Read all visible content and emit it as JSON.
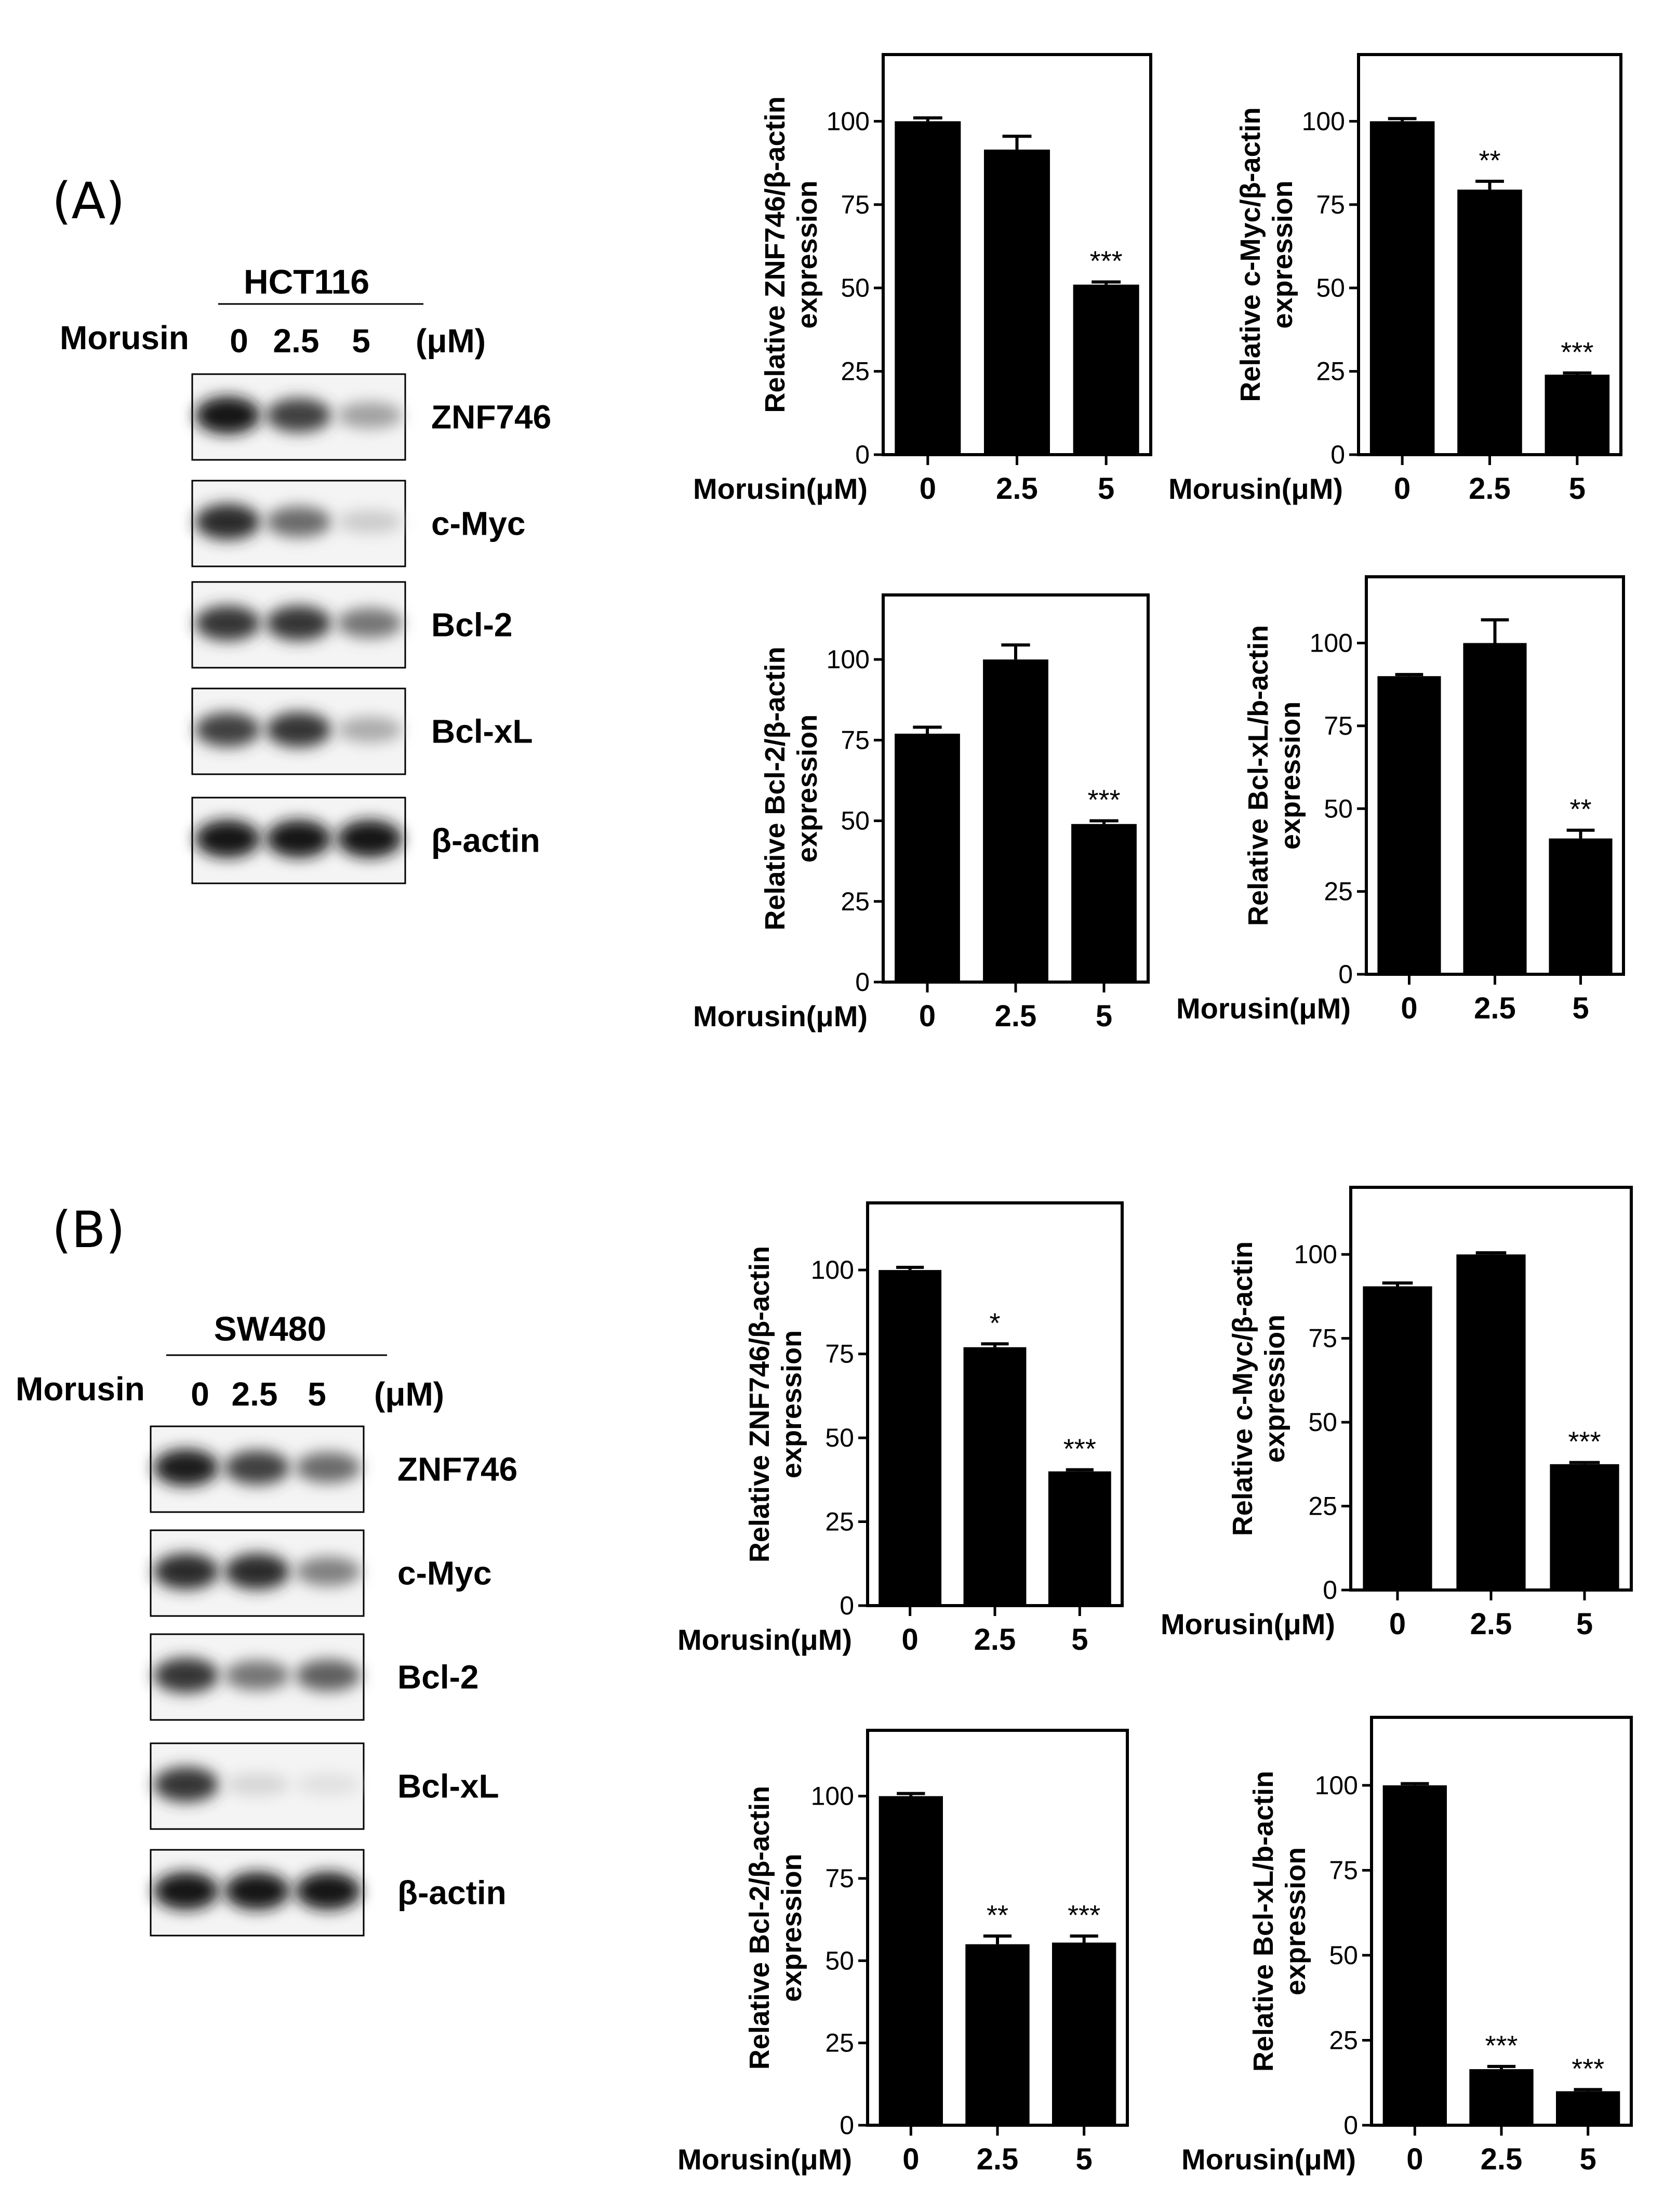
{
  "panels": [
    {
      "letter": "(A)",
      "cell_line": "HCT116",
      "treatment_label": "Morusin",
      "doses": [
        "0",
        "2.5",
        "5"
      ],
      "unit": "(μM)",
      "bands": [
        {
          "protein": "ZNF746",
          "intensity": [
            1.0,
            0.8,
            0.35
          ]
        },
        {
          "protein": "c-Myc",
          "intensity": [
            0.9,
            0.6,
            0.15
          ]
        },
        {
          "protein": "Bcl-2",
          "intensity": [
            0.85,
            0.85,
            0.55
          ]
        },
        {
          "protein": "Bcl-xL",
          "intensity": [
            0.8,
            0.85,
            0.3
          ]
        },
        {
          "protein": "β-actin",
          "intensity": [
            1.0,
            1.0,
            1.0
          ]
        }
      ]
    },
    {
      "letter": "(B)",
      "cell_line": "SW480",
      "treatment_label": "Morusin",
      "doses": [
        "0",
        "2.5",
        "5"
      ],
      "unit": "(μM)",
      "bands": [
        {
          "protein": "ZNF746",
          "intensity": [
            0.95,
            0.8,
            0.6
          ]
        },
        {
          "protein": "c-Myc",
          "intensity": [
            0.9,
            0.9,
            0.5
          ]
        },
        {
          "protein": "Bcl-2",
          "intensity": [
            0.85,
            0.55,
            0.65
          ]
        },
        {
          "protein": "Bcl-xL",
          "intensity": [
            0.85,
            0.1,
            0.05
          ]
        },
        {
          "protein": "β-actin",
          "intensity": [
            1.0,
            1.0,
            1.0
          ]
        }
      ]
    }
  ],
  "chart_data": [
    {
      "type": "bar",
      "panel": "(A)",
      "categories": [
        "0",
        "2.5",
        "5"
      ],
      "values": [
        100,
        91.5,
        51
      ],
      "errors": [
        1,
        4,
        0.8
      ],
      "significance": [
        "",
        "",
        "***"
      ],
      "ylabel": [
        "Relative ZNF746/β-actin",
        "expression"
      ],
      "xlabel": "Morusin(μM)",
      "ylim": [
        0,
        120
      ],
      "yticks": [
        0,
        25,
        50,
        75,
        100
      ]
    },
    {
      "type": "bar",
      "panel": "(A)",
      "categories": [
        "0",
        "2.5",
        "5"
      ],
      "values": [
        100,
        79.5,
        24
      ],
      "errors": [
        0.8,
        2.5,
        0.5
      ],
      "significance": [
        "",
        "**",
        "***"
      ],
      "ylabel": [
        "Relative c-Myc/β-actin",
        "expression"
      ],
      "xlabel": "Morusin(μM)",
      "ylim": [
        0,
        120
      ],
      "yticks": [
        0,
        25,
        50,
        75,
        100
      ]
    },
    {
      "type": "bar",
      "panel": "(A)",
      "categories": [
        "0",
        "2.5",
        "5"
      ],
      "values": [
        77,
        100,
        49
      ],
      "errors": [
        2,
        4.5,
        1
      ],
      "significance": [
        "",
        "",
        "***"
      ],
      "ylabel": [
        "Relative Bcl-2/β-actin",
        "expression"
      ],
      "xlabel": "Morusin(μM)",
      "ylim": [
        0,
        120
      ],
      "yticks": [
        0,
        25,
        50,
        75,
        100
      ]
    },
    {
      "type": "bar",
      "panel": "(A)",
      "categories": [
        "0",
        "2.5",
        "5"
      ],
      "values": [
        90,
        100,
        41
      ],
      "errors": [
        0.5,
        7,
        2.5
      ],
      "significance": [
        "",
        "",
        "**"
      ],
      "ylabel": [
        "Relative Bcl-xL/b-actin",
        "expression"
      ],
      "xlabel": "Morusin(μM)",
      "ylim": [
        0,
        120
      ],
      "yticks": [
        0,
        25,
        50,
        75,
        100
      ]
    },
    {
      "type": "bar",
      "panel": "(B)",
      "categories": [
        "0",
        "2.5",
        "5"
      ],
      "values": [
        100,
        77,
        40
      ],
      "errors": [
        0.8,
        1,
        0.5
      ],
      "significance": [
        "",
        "*",
        "***"
      ],
      "ylabel": [
        "Relative ZNF746/β-actin",
        "expression"
      ],
      "xlabel": "Morusin(μM)",
      "ylim": [
        0,
        120
      ],
      "yticks": [
        0,
        25,
        50,
        75,
        100
      ]
    },
    {
      "type": "bar",
      "panel": "(B)",
      "categories": [
        "0",
        "2.5",
        "5"
      ],
      "values": [
        90.5,
        100,
        37.5
      ],
      "errors": [
        1,
        0.5,
        0.5
      ],
      "significance": [
        "",
        "",
        "***"
      ],
      "ylabel": [
        "Relative c-Myc/β-actin",
        "expression"
      ],
      "xlabel": "Morusin(μM)",
      "ylim": [
        0,
        120
      ],
      "yticks": [
        0,
        25,
        50,
        75,
        100
      ]
    },
    {
      "type": "bar",
      "panel": "(B)",
      "categories": [
        "0",
        "2.5",
        "5"
      ],
      "values": [
        100,
        55,
        55.5
      ],
      "errors": [
        0.8,
        2.5,
        2
      ],
      "significance": [
        "",
        "**",
        "***"
      ],
      "ylabel": [
        "Relative Bcl-2/β-actin",
        "expression"
      ],
      "xlabel": "Morusin(μM)",
      "ylim": [
        0,
        120
      ],
      "yticks": [
        0,
        25,
        50,
        75,
        100
      ]
    },
    {
      "type": "bar",
      "panel": "(B)",
      "categories": [
        "0",
        "2.5",
        "5"
      ],
      "values": [
        100,
        16.5,
        10
      ],
      "errors": [
        0.5,
        0.8,
        0.5
      ],
      "significance": [
        "",
        "***",
        "***"
      ],
      "ylabel": [
        "Relative Bcl-xL/b-actin",
        "expression"
      ],
      "xlabel": "Morusin(μM)",
      "ylim": [
        0,
        120
      ],
      "yticks": [
        0,
        25,
        50,
        75,
        100
      ]
    }
  ]
}
